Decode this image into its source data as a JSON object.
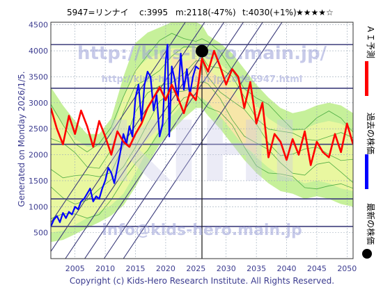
{
  "header": {
    "code_name": "5947=リンナイ",
    "current": "c:3995",
    "mean": "m:2118(-47%)",
    "target": "t:4030(+1%)",
    "stars": "★★★★☆"
  },
  "side_left": "Generated on Monday 2026/1/5.",
  "footer": "Copyright (c) Kids-Hero Research Institute. All Rights Reserved.",
  "watermarks": {
    "url_main": "http://kids-hero.main.jp/",
    "url_code": "http://kids-hero.main.jp/code5947.html",
    "email": "info@kids-hero.main.jp",
    "big": "KIHI"
  },
  "legend": {
    "ai": "ＡＩ予測",
    "past": "過去の株価",
    "latest": "最新の株価"
  },
  "colors": {
    "ai": "#ff0000",
    "past": "#0000ff",
    "latest": "#000000",
    "band_outer": "#c6f09a",
    "band_inner": "#e9f7a0",
    "band_core": "#f7e6a8",
    "thin_lines": "#2c9a2c",
    "hline": "#3b3b7a",
    "axis_text": "#3b3b8f"
  },
  "chart_data": {
    "type": "line",
    "xlim": [
      2001,
      2051
    ],
    "ylim": [
      0,
      4550
    ],
    "xticks": [
      2005,
      2010,
      2015,
      2020,
      2025,
      2030,
      2035,
      2040,
      2045,
      2050
    ],
    "yticks": [
      500,
      1000,
      1500,
      2000,
      2500,
      3000,
      3500,
      4000,
      4500
    ],
    "grid": true,
    "hlines": [
      4120,
      3280,
      2200,
      1150,
      620
    ],
    "vline_x": 2026,
    "latest_point": {
      "x": 2026.0,
      "y": 3995
    },
    "series": [
      {
        "name": "過去の株価",
        "x": [
          2001.0,
          2001.5,
          2002.0,
          2002.5,
          2003.0,
          2003.5,
          2004.0,
          2004.5,
          2005.0,
          2005.5,
          2006.0,
          2006.5,
          2007.0,
          2007.5,
          2008.0,
          2008.5,
          2009.0,
          2009.5,
          2010.0,
          2010.5,
          2011.0,
          2011.5,
          2012.0,
          2012.5,
          2013.0,
          2013.5,
          2014.0,
          2014.5,
          2015.0,
          2015.5,
          2016.0,
          2016.5,
          2017.0,
          2017.5,
          2018.0,
          2018.5,
          2019.0,
          2019.5,
          2020.0,
          2020.3,
          2020.6,
          2021.0,
          2021.5,
          2022.0,
          2022.5,
          2023.0,
          2023.5,
          2024.0,
          2024.5,
          2025.0,
          2025.5
        ],
        "y": [
          620,
          750,
          820,
          700,
          880,
          780,
          900,
          850,
          1000,
          950,
          1100,
          1150,
          1250,
          1350,
          1100,
          1200,
          1150,
          1350,
          1500,
          1750,
          1650,
          1450,
          1750,
          2050,
          2400,
          2200,
          2550,
          2350,
          3100,
          3350,
          2650,
          3350,
          3600,
          3500,
          2850,
          3150,
          2350,
          2600,
          3800,
          4120,
          2350,
          3700,
          3450,
          3050,
          3950,
          3250,
          3650,
          3150,
          3500,
          3700,
          3650
        ]
      },
      {
        "name": "ＡＩ予測",
        "x": [
          2001.0,
          2002.0,
          2003.0,
          2004.0,
          2005.0,
          2006.0,
          2007.0,
          2008.0,
          2009.0,
          2010.0,
          2011.0,
          2012.0,
          2013.0,
          2014.0,
          2015.0,
          2016.0,
          2017.0,
          2018.0,
          2019.0,
          2020.0,
          2021.0,
          2022.0,
          2023.0,
          2024.0,
          2025.0,
          2026.0,
          2027.0,
          2028.0,
          2029.0,
          2030.0,
          2031.0,
          2032.0,
          2033.0,
          2034.0,
          2035.0,
          2036.0,
          2037.0,
          2038.0,
          2039.0,
          2040.0,
          2041.0,
          2042.0,
          2043.0,
          2044.0,
          2045.0,
          2046.0,
          2047.0,
          2048.0,
          2049.0,
          2050.0,
          2051.0
        ],
        "y": [
          2900,
          2500,
          2200,
          2750,
          2400,
          2850,
          2550,
          2150,
          2650,
          2350,
          2000,
          2450,
          2250,
          2150,
          2400,
          2600,
          2900,
          3100,
          3300,
          3050,
          3350,
          3100,
          2800,
          3200,
          3050,
          3850,
          3600,
          4000,
          3700,
          3350,
          3650,
          3500,
          2900,
          3400,
          2600,
          3000,
          1950,
          2400,
          2250,
          1900,
          2300,
          2000,
          2450,
          1800,
          2250,
          2050,
          1950,
          2400,
          2050,
          2600,
          2200
        ]
      }
    ],
    "band_outer": {
      "x": [
        2001,
        2003,
        2005,
        2007,
        2009,
        2011,
        2013,
        2015,
        2017,
        2019,
        2021,
        2023,
        2025,
        2026,
        2027,
        2029,
        2031,
        2033,
        2035,
        2037,
        2039,
        2041,
        2043,
        2045,
        2047,
        2049,
        2051
      ],
      "upper": [
        3300,
        2950,
        2650,
        2400,
        2400,
        2700,
        3500,
        4150,
        4350,
        4450,
        4550,
        4550,
        4550,
        4500,
        4300,
        4150,
        3950,
        3650,
        3350,
        3100,
        2900,
        2800,
        2850,
        2950,
        3000,
        2950,
        2800
      ],
      "lower": [
        320,
        360,
        470,
        590,
        700,
        830,
        1020,
        1380,
        1800,
        2200,
        2450,
        2700,
        2900,
        2900,
        2750,
        2500,
        2200,
        1900,
        1650,
        1450,
        1300,
        1250,
        1150,
        1200,
        1150,
        1050,
        1000
      ]
    },
    "band_inner": {
      "x": [
        2001,
        2003,
        2005,
        2007,
        2009,
        2011,
        2013,
        2015,
        2017,
        2019,
        2021,
        2023,
        2025,
        2026,
        2027,
        2029,
        2031,
        2033,
        2035,
        2037,
        2039,
        2041,
        2043,
        2045,
        2047,
        2049,
        2051
      ],
      "upper": [
        2900,
        2600,
        2300,
        2150,
        2150,
        2400,
        3100,
        3650,
        3850,
        3950,
        4050,
        4050,
        4100,
        4050,
        3900,
        3750,
        3550,
        3250,
        2950,
        2700,
        2550,
        2450,
        2500,
        2600,
        2650,
        2600,
        2450
      ],
      "lower": [
        500,
        540,
        650,
        780,
        900,
        1030,
        1250,
        1650,
        2100,
        2500,
        2750,
        3000,
        3150,
        3150,
        3000,
        2800,
        2500,
        2200,
        1950,
        1750,
        1600,
        1550,
        1450,
        1500,
        1450,
        1350,
        1300
      ]
    },
    "band_core": {
      "x": [
        2021,
        2023,
        2025,
        2026,
        2027,
        2029,
        2031,
        2033,
        2035
      ],
      "upper": [
        3900,
        3800,
        3850,
        3800,
        3650,
        3450,
        3250,
        2900,
        2550
      ],
      "lower": [
        2950,
        3050,
        3100,
        3100,
        3000,
        2750,
        2450,
        2150,
        2000
      ]
    }
  }
}
